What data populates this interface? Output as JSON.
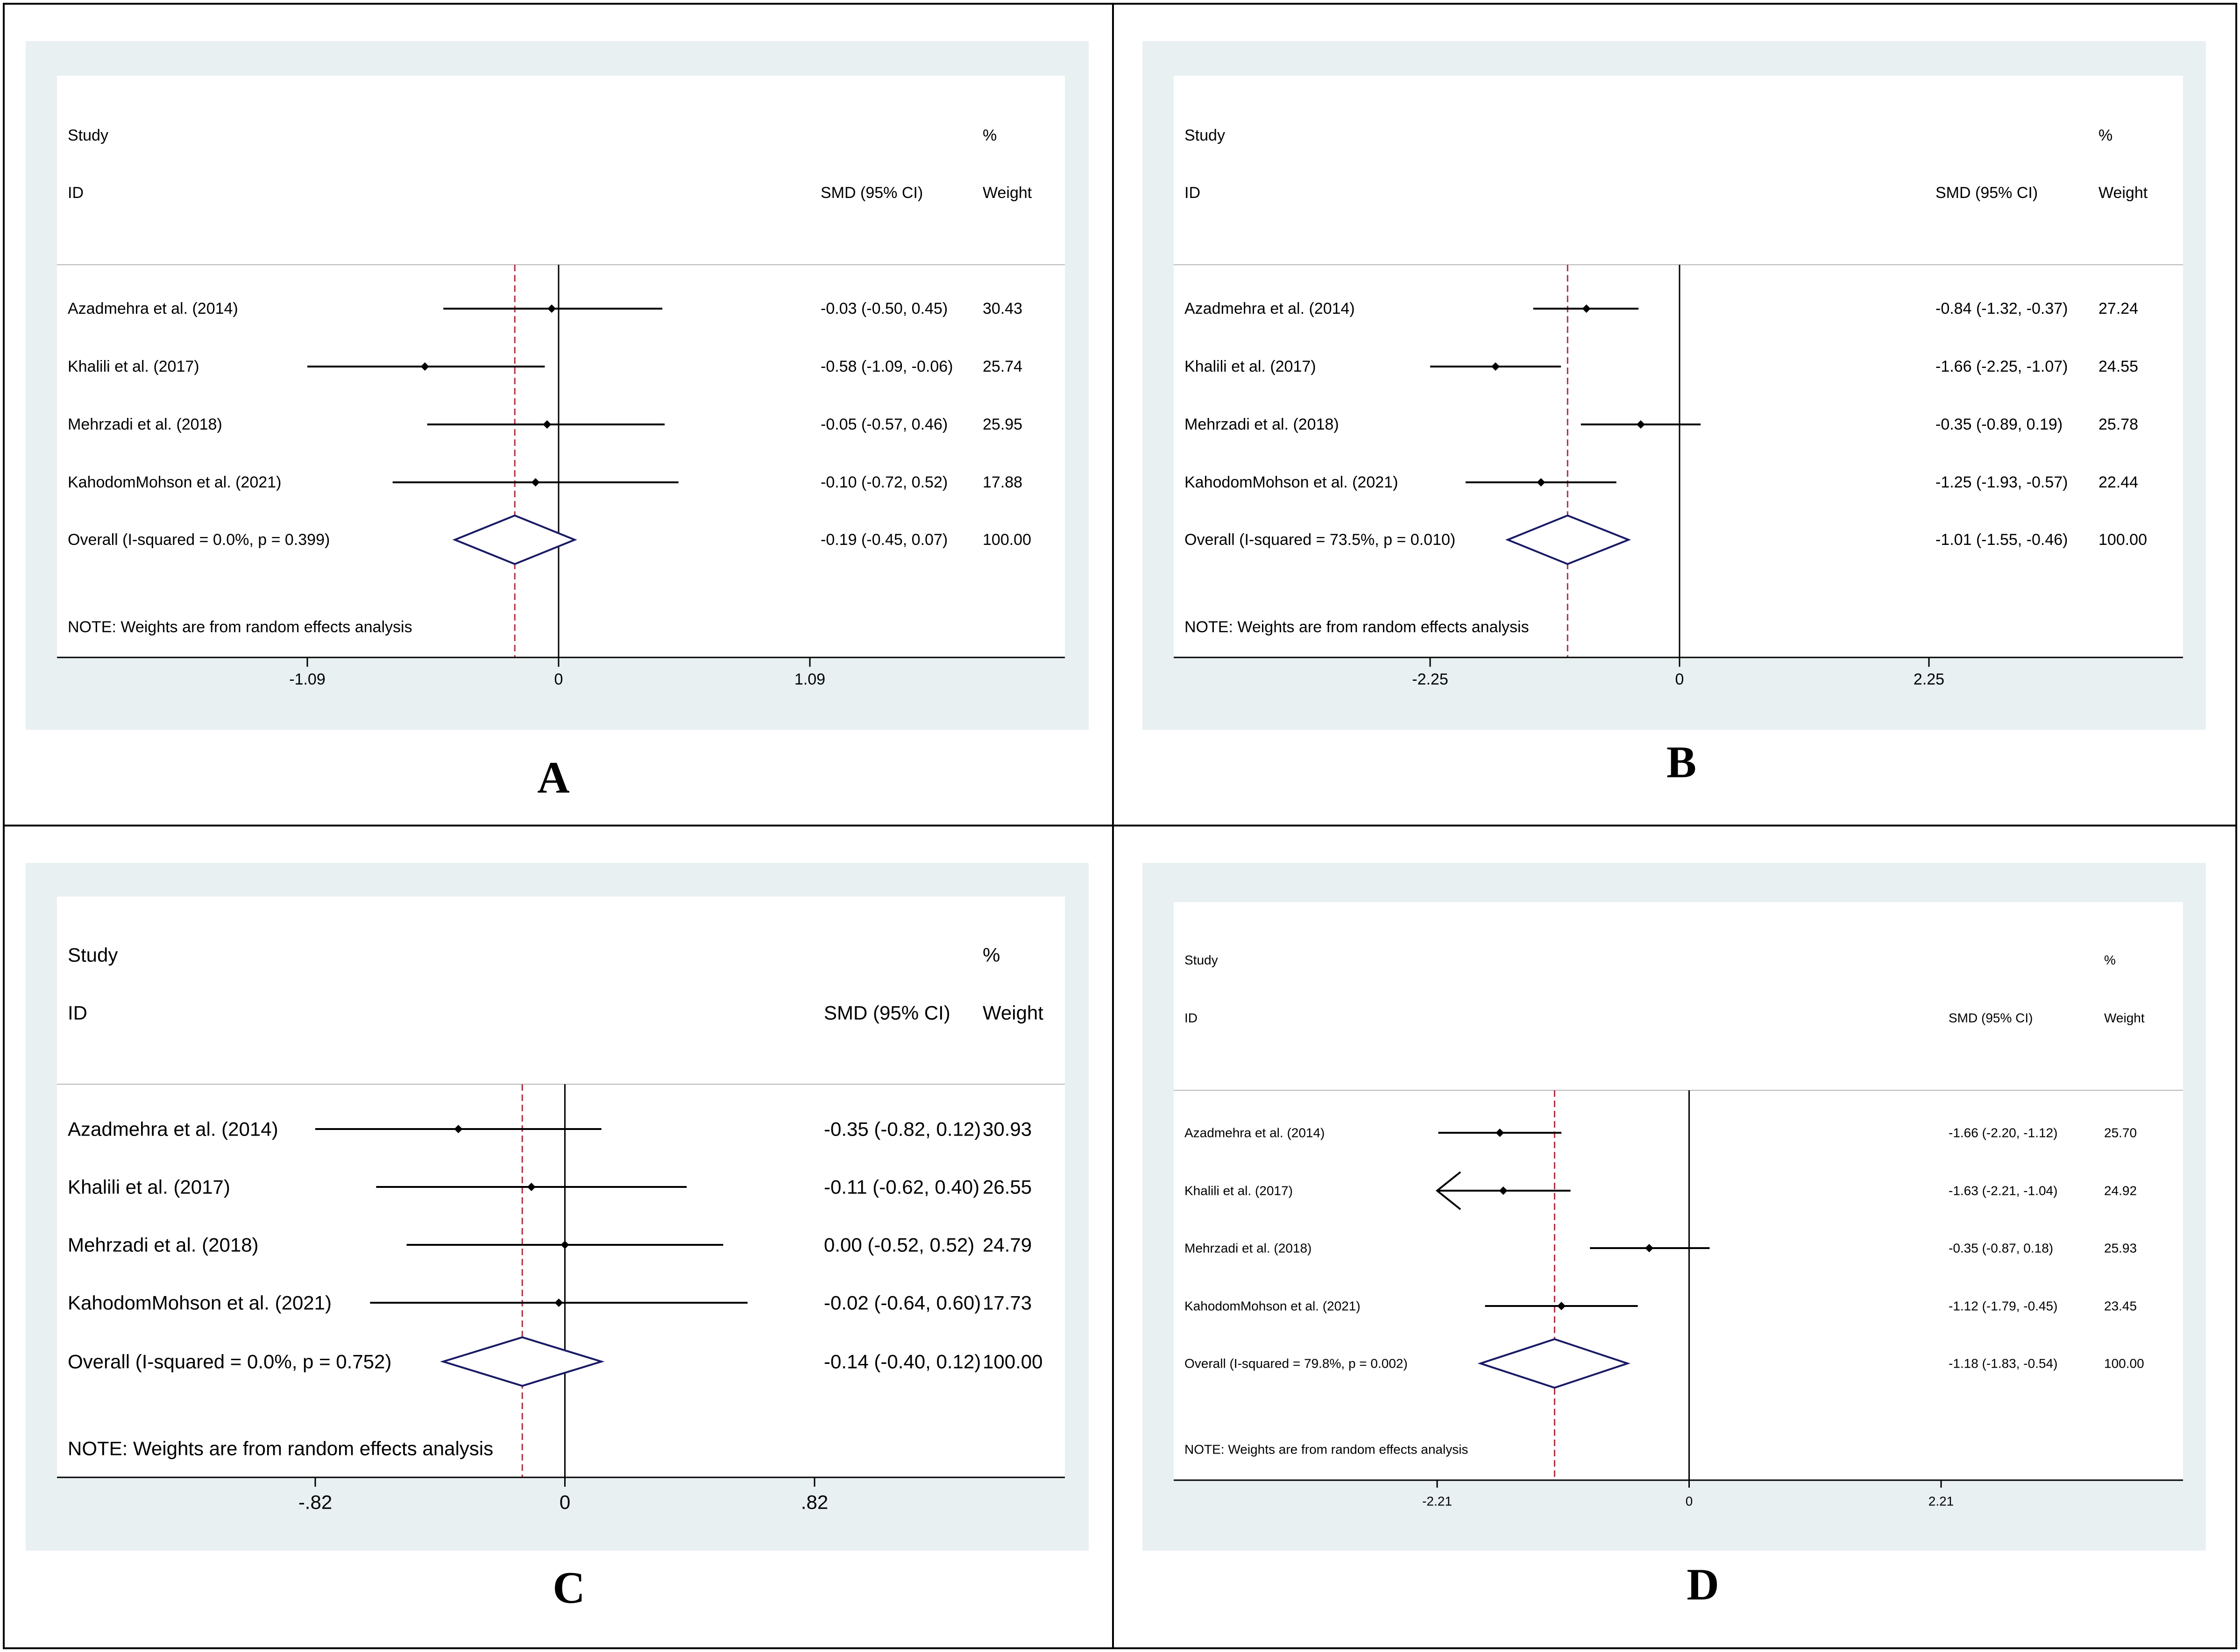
{
  "figure": {
    "border_color": "#000000",
    "panel_bg": "#e9f0f2",
    "plot_bg": "#ffffff",
    "diamond_color": "#1a1a66",
    "null_line_color": "#000000",
    "overall_line_color": "#b03040"
  },
  "chart_data": [
    {
      "type": "forest",
      "panel_label": "A",
      "header": {
        "study": "Study",
        "id": "ID",
        "effect": "SMD (95% CI)",
        "pct": "%",
        "weight": "Weight"
      },
      "studies": [
        {
          "name": "Azadmehra et al. (2014)",
          "est": -0.03,
          "lo": -0.5,
          "hi": 0.45,
          "ci_text": "-0.03 (-0.50, 0.45)",
          "weight": "30.43"
        },
        {
          "name": "Khalili et al. (2017)",
          "est": -0.58,
          "lo": -1.09,
          "hi": -0.06,
          "ci_text": "-0.58 (-1.09, -0.06)",
          "weight": "25.74"
        },
        {
          "name": "Mehrzadi et al. (2018)",
          "est": -0.05,
          "lo": -0.57,
          "hi": 0.46,
          "ci_text": "-0.05 (-0.57, 0.46)",
          "weight": "25.95"
        },
        {
          "name": "KahodomMohson et al. (2021)",
          "est": -0.1,
          "lo": -0.72,
          "hi": 0.52,
          "ci_text": "-0.10 (-0.72, 0.52)",
          "weight": "17.88"
        }
      ],
      "overall": {
        "label": "Overall  (I-squared = 0.0%, p = 0.399)",
        "est": -0.19,
        "lo": -0.45,
        "hi": 0.07,
        "ci_text": "-0.19 (-0.45, 0.07)",
        "weight": "100.00"
      },
      "note": "NOTE: Weights are from random effects analysis",
      "xlim": [
        -1.09,
        1.09
      ],
      "ticks": [
        {
          "v": -1.09,
          "label": "-1.09"
        },
        {
          "v": 0,
          "label": "0"
        },
        {
          "v": 1.09,
          "label": "1.09"
        }
      ]
    },
    {
      "type": "forest",
      "panel_label": "B",
      "header": {
        "study": "Study",
        "id": "ID",
        "effect": "SMD (95% CI)",
        "pct": "%",
        "weight": "Weight"
      },
      "studies": [
        {
          "name": "Azadmehra et al. (2014)",
          "est": -0.84,
          "lo": -1.32,
          "hi": -0.37,
          "ci_text": "-0.84 (-1.32, -0.37)",
          "weight": "27.24"
        },
        {
          "name": "Khalili et al. (2017)",
          "est": -1.66,
          "lo": -2.25,
          "hi": -1.07,
          "ci_text": "-1.66 (-2.25, -1.07)",
          "weight": "24.55"
        },
        {
          "name": "Mehrzadi et al. (2018)",
          "est": -0.35,
          "lo": -0.89,
          "hi": 0.19,
          "ci_text": "-0.35 (-0.89, 0.19)",
          "weight": "25.78"
        },
        {
          "name": "KahodomMohson et al. (2021)",
          "est": -1.25,
          "lo": -1.93,
          "hi": -0.57,
          "ci_text": "-1.25 (-1.93, -0.57)",
          "weight": "22.44"
        }
      ],
      "overall": {
        "label": "Overall  (I-squared = 73.5%, p = 0.010)",
        "est": -1.01,
        "lo": -1.55,
        "hi": -0.46,
        "ci_text": "-1.01 (-1.55, -0.46)",
        "weight": "100.00"
      },
      "note": "NOTE: Weights are from random effects analysis",
      "xlim": [
        -2.25,
        2.25
      ],
      "ticks": [
        {
          "v": -2.25,
          "label": "-2.25"
        },
        {
          "v": 0,
          "label": "0"
        },
        {
          "v": 2.25,
          "label": "2.25"
        }
      ]
    },
    {
      "type": "forest",
      "panel_label": "C",
      "header": {
        "study": "Study",
        "id": "ID",
        "effect": "SMD (95% CI)",
        "pct": "%",
        "weight": "Weight"
      },
      "studies": [
        {
          "name": "Azadmehra et al. (2014)",
          "est": -0.35,
          "lo": -0.82,
          "hi": 0.12,
          "ci_text": "-0.35 (-0.82, 0.12)",
          "weight": "30.93"
        },
        {
          "name": "Khalili et al. (2017)",
          "est": -0.11,
          "lo": -0.62,
          "hi": 0.4,
          "ci_text": "-0.11 (-0.62, 0.40)",
          "weight": "26.55"
        },
        {
          "name": "Mehrzadi et al. (2018)",
          "est": 0.0,
          "lo": -0.52,
          "hi": 0.52,
          "ci_text": "0.00 (-0.52, 0.52)",
          "weight": "24.79"
        },
        {
          "name": "KahodomMohson et al. (2021)",
          "est": -0.02,
          "lo": -0.64,
          "hi": 0.6,
          "ci_text": "-0.02 (-0.64, 0.60)",
          "weight": "17.73"
        }
      ],
      "overall": {
        "label": "Overall  (I-squared = 0.0%, p = 0.752)",
        "est": -0.14,
        "lo": -0.4,
        "hi": 0.12,
        "ci_text": "-0.14 (-0.40, 0.12)",
        "weight": "100.00"
      },
      "note": "NOTE: Weights are from random effects analysis",
      "xlim": [
        -0.82,
        0.82
      ],
      "ticks": [
        {
          "v": -0.82,
          "label": "-.82"
        },
        {
          "v": 0,
          "label": "0"
        },
        {
          "v": 0.82,
          "label": ".82"
        }
      ]
    },
    {
      "type": "forest",
      "panel_label": "D",
      "header": {
        "study": "Study",
        "id": "ID",
        "effect": "SMD (95% CI)",
        "pct": "%",
        "weight": "Weight"
      },
      "studies": [
        {
          "name": "Azadmehra et al. (2014)",
          "est": -1.66,
          "lo": -2.2,
          "hi": -1.12,
          "ci_text": "-1.66 (-2.20, -1.12)",
          "weight": "25.70"
        },
        {
          "name": "Khalili et al. (2017)",
          "est": -1.63,
          "lo": -2.21,
          "hi": -1.04,
          "ci_text": "-1.63 (-2.21, -1.04)",
          "weight": "24.92",
          "arrow_left": true
        },
        {
          "name": "Mehrzadi et al. (2018)",
          "est": -0.35,
          "lo": -0.87,
          "hi": 0.18,
          "ci_text": "-0.35 (-0.87, 0.18)",
          "weight": "25.93"
        },
        {
          "name": "KahodomMohson et al. (2021)",
          "est": -1.12,
          "lo": -1.79,
          "hi": -0.45,
          "ci_text": "-1.12 (-1.79, -0.45)",
          "weight": "23.45"
        }
      ],
      "overall": {
        "label": "Overall  (I-squared = 79.8%, p = 0.002)",
        "est": -1.18,
        "lo": -1.83,
        "hi": -0.54,
        "ci_text": "-1.18 (-1.83, -0.54)",
        "weight": "100.00"
      },
      "note": "NOTE: Weights are from random effects analysis",
      "xlim": [
        -2.21,
        2.21
      ],
      "ticks": [
        {
          "v": -2.21,
          "label": "-2.21"
        },
        {
          "v": 0,
          "label": "0"
        },
        {
          "v": 2.21,
          "label": "2.21"
        }
      ]
    }
  ]
}
